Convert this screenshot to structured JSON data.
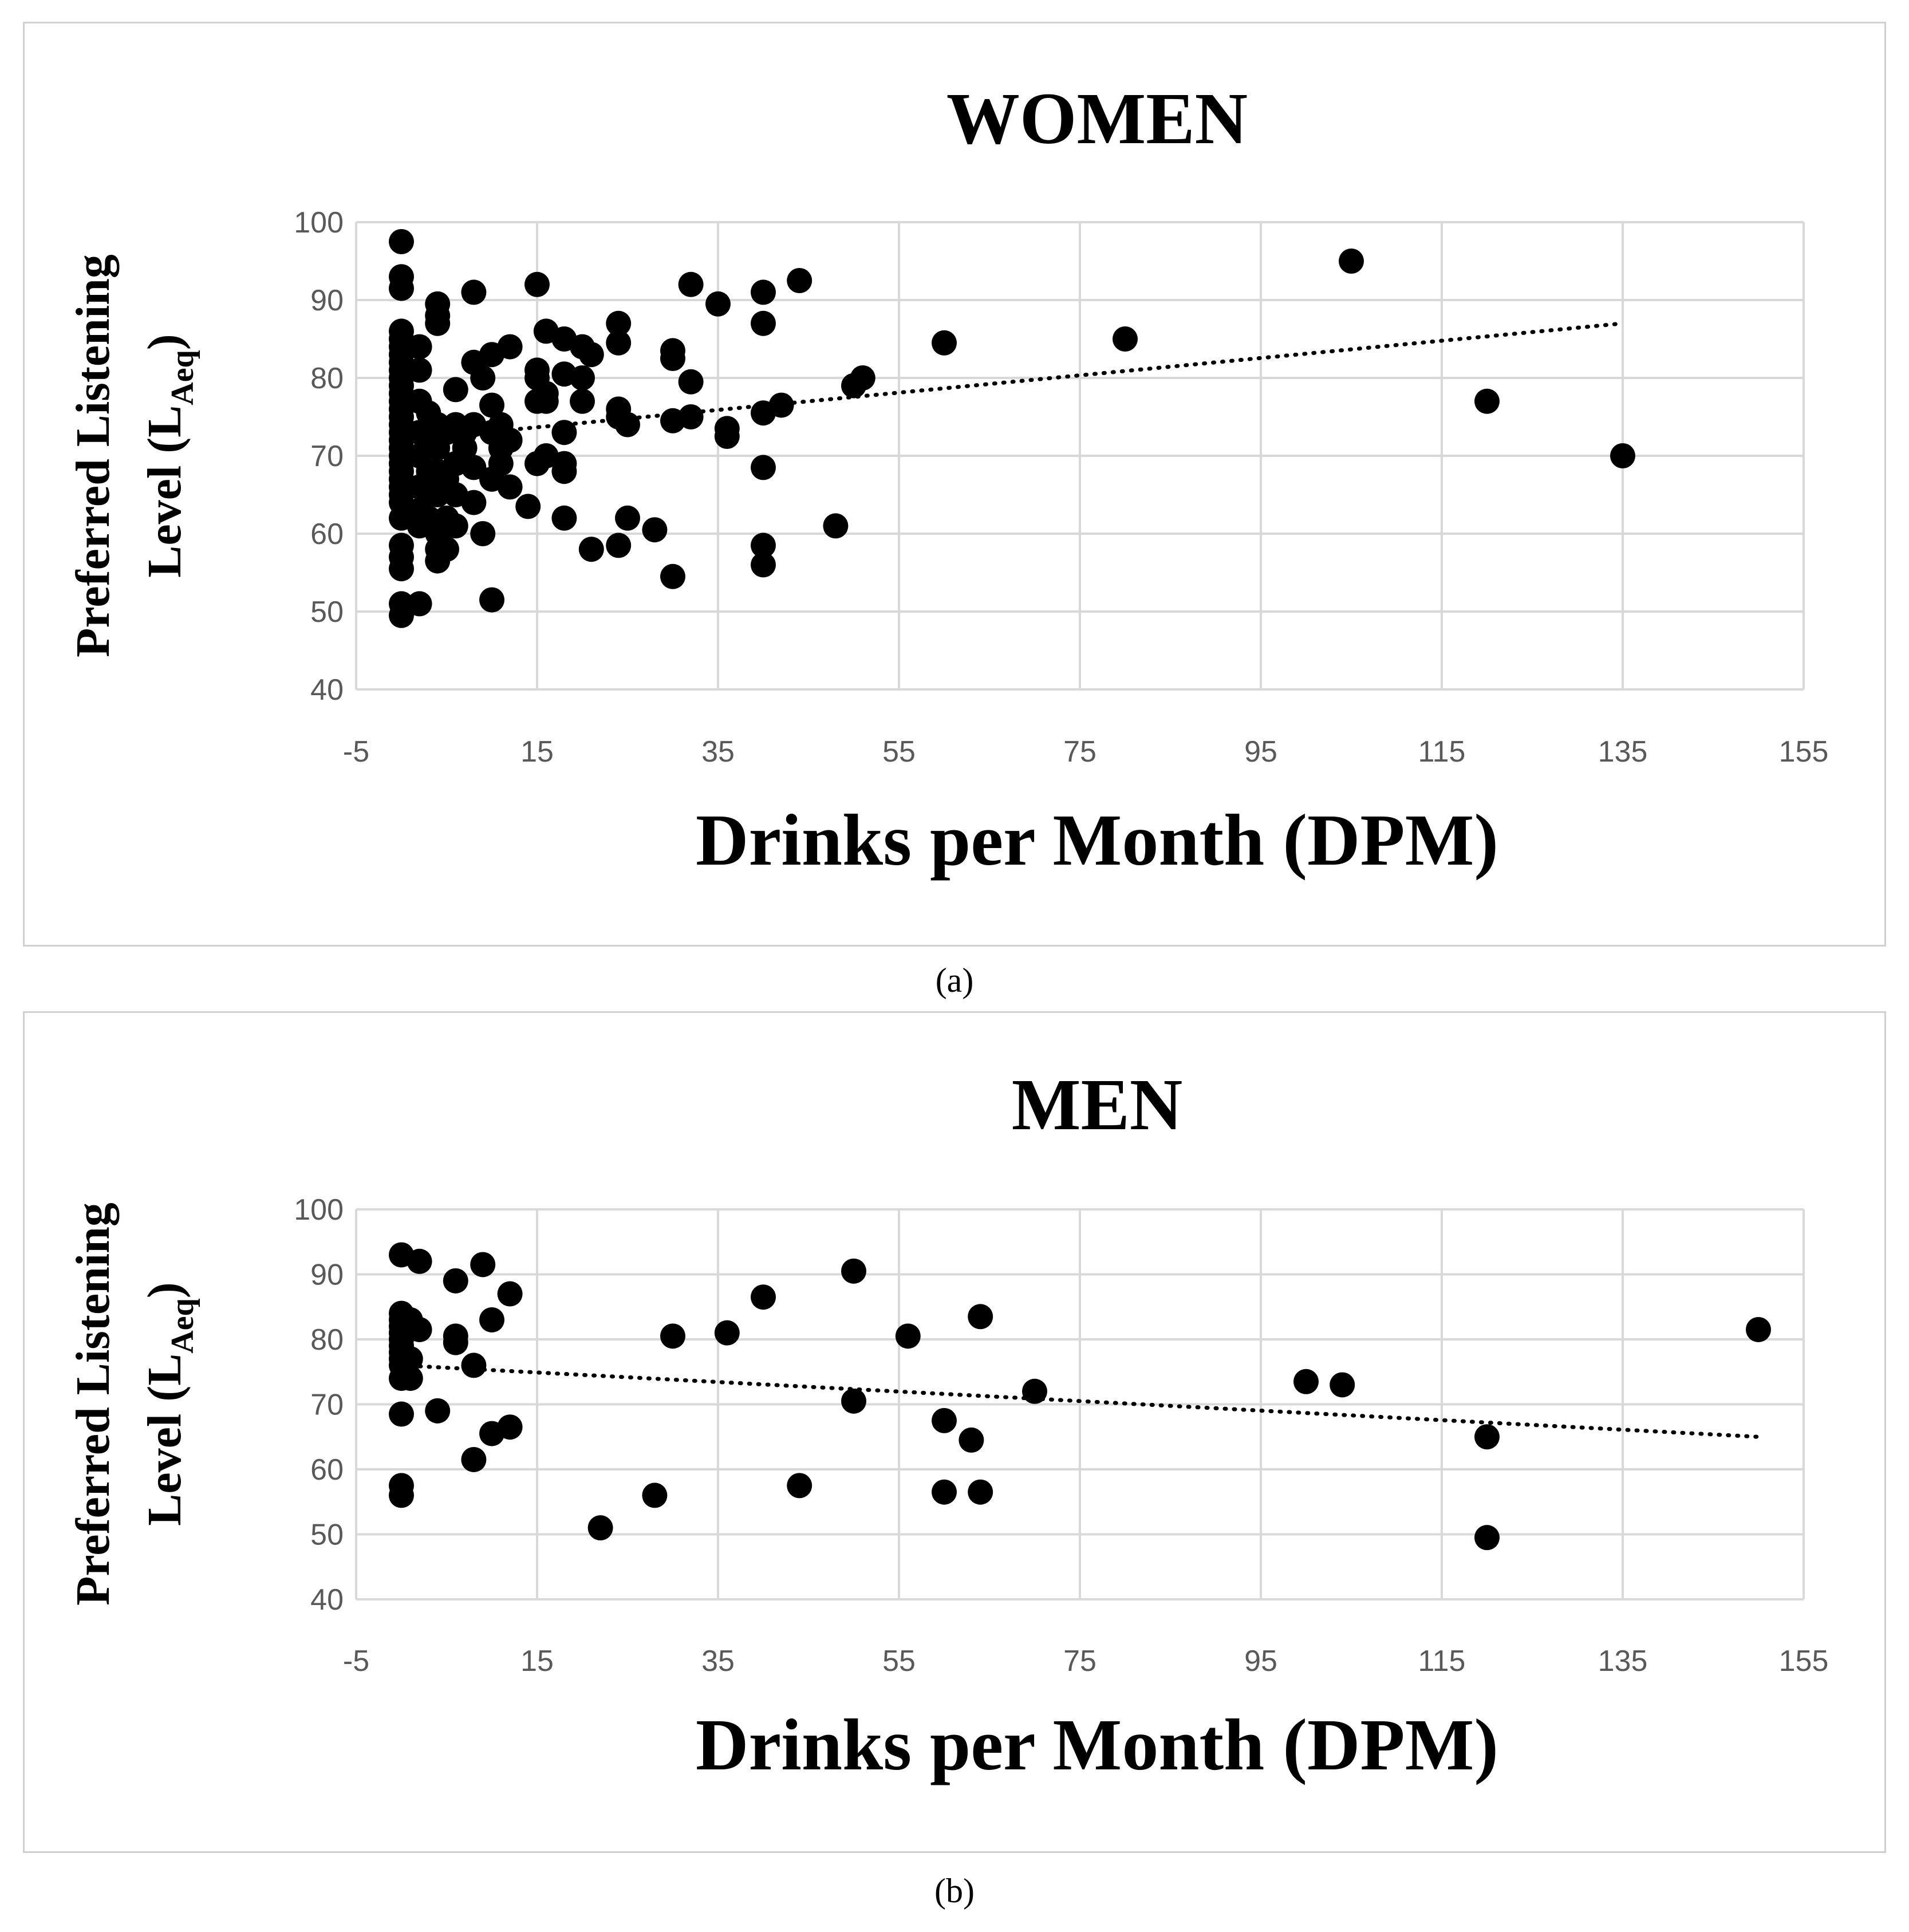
{
  "captions": {
    "a": "(a)",
    "b": "(b)"
  },
  "colors": {
    "marker": "#000000",
    "grid": "#d9d9d9",
    "tick_text": "#595959",
    "border": "#d0d0d0"
  },
  "chart_data": [
    {
      "type": "scatter",
      "title": "WOMEN",
      "xlabel": "Drinks per Month (DPM)",
      "ylabel_line1": "Preferred Listening",
      "ylabel_line2": "Level (L",
      "ylabel_sub": "Aeq",
      "ylabel_close": ")",
      "xlim": [
        -5,
        155
      ],
      "ylim": [
        40,
        100
      ],
      "xticks": [
        -5,
        15,
        35,
        55,
        75,
        95,
        115,
        135,
        155
      ],
      "yticks": [
        40,
        50,
        60,
        70,
        80,
        90,
        100
      ],
      "trendline": {
        "style": "dotted",
        "x": [
          0,
          135
        ],
        "y": [
          72.0,
          87.0
        ]
      },
      "points": [
        [
          0,
          97.5
        ],
        [
          0,
          93
        ],
        [
          0,
          91.5
        ],
        [
          0,
          86
        ],
        [
          0,
          85
        ],
        [
          0,
          84
        ],
        [
          0,
          83
        ],
        [
          0,
          82
        ],
        [
          0,
          81
        ],
        [
          0,
          80
        ],
        [
          0,
          79
        ],
        [
          0,
          78
        ],
        [
          0,
          77
        ],
        [
          0,
          76
        ],
        [
          0,
          75
        ],
        [
          0,
          74
        ],
        [
          0,
          73
        ],
        [
          0,
          72
        ],
        [
          0,
          71
        ],
        [
          0,
          70
        ],
        [
          0,
          69
        ],
        [
          0,
          68
        ],
        [
          0,
          67
        ],
        [
          0,
          66
        ],
        [
          0,
          65
        ],
        [
          0,
          64
        ],
        [
          0,
          62
        ],
        [
          0,
          58.5
        ],
        [
          0,
          57
        ],
        [
          0,
          55.5
        ],
        [
          0,
          51
        ],
        [
          0,
          49.5
        ],
        [
          2,
          84
        ],
        [
          2,
          81
        ],
        [
          2,
          77
        ],
        [
          2,
          73
        ],
        [
          2,
          70
        ],
        [
          2,
          66
        ],
        [
          2,
          63
        ],
        [
          2,
          61
        ],
        [
          2,
          51
        ],
        [
          3,
          75.5
        ],
        [
          3,
          72
        ],
        [
          3,
          68
        ],
        [
          3,
          65
        ],
        [
          3,
          62
        ],
        [
          4,
          89.5
        ],
        [
          4,
          88
        ],
        [
          4,
          87
        ],
        [
          4,
          74
        ],
        [
          4,
          71
        ],
        [
          4,
          68
        ],
        [
          4,
          65
        ],
        [
          4,
          60
        ],
        [
          4,
          58
        ],
        [
          4,
          56.5
        ],
        [
          5,
          73
        ],
        [
          5,
          67
        ],
        [
          5,
          62
        ],
        [
          5,
          58
        ],
        [
          6,
          78.5
        ],
        [
          6,
          74
        ],
        [
          6,
          69
        ],
        [
          6,
          65
        ],
        [
          6,
          61
        ],
        [
          7,
          73
        ],
        [
          7,
          71
        ],
        [
          8,
          91
        ],
        [
          8,
          82
        ],
        [
          8,
          74
        ],
        [
          8,
          68.5
        ],
        [
          8,
          64
        ],
        [
          9,
          80
        ],
        [
          9,
          60
        ],
        [
          10,
          83
        ],
        [
          10,
          76.5
        ],
        [
          10,
          73
        ],
        [
          10,
          67
        ],
        [
          10,
          51.5
        ],
        [
          11,
          74
        ],
        [
          11,
          71
        ],
        [
          11,
          69
        ],
        [
          12,
          84
        ],
        [
          12,
          72
        ],
        [
          12,
          66
        ],
        [
          14,
          63.5
        ],
        [
          15,
          92
        ],
        [
          15,
          81
        ],
        [
          15,
          80
        ],
        [
          15,
          77
        ],
        [
          15,
          69
        ],
        [
          16,
          86
        ],
        [
          16,
          78
        ],
        [
          16,
          77
        ],
        [
          16,
          70
        ],
        [
          18,
          85
        ],
        [
          18,
          80.5
        ],
        [
          18,
          73
        ],
        [
          18,
          69
        ],
        [
          18,
          68
        ],
        [
          18,
          62
        ],
        [
          20,
          84
        ],
        [
          20,
          80
        ],
        [
          20,
          77
        ],
        [
          21,
          83
        ],
        [
          21,
          58
        ],
        [
          24,
          87
        ],
        [
          24,
          84.5
        ],
        [
          24,
          76
        ],
        [
          24,
          75
        ],
        [
          24,
          58.5
        ],
        [
          25,
          74
        ],
        [
          25,
          62
        ],
        [
          28,
          60.5
        ],
        [
          30,
          83.5
        ],
        [
          30,
          82.5
        ],
        [
          30,
          74.5
        ],
        [
          30,
          54.5
        ],
        [
          32,
          92
        ],
        [
          32,
          79.5
        ],
        [
          32,
          75
        ],
        [
          35,
          89.5
        ],
        [
          36,
          73.5
        ],
        [
          36,
          72.5
        ],
        [
          40,
          91
        ],
        [
          40,
          87
        ],
        [
          40,
          75.5
        ],
        [
          40,
          68.5
        ],
        [
          40,
          58.5
        ],
        [
          40,
          56
        ],
        [
          42,
          76.5
        ],
        [
          44,
          92.5
        ],
        [
          48,
          61
        ],
        [
          50,
          79
        ],
        [
          51,
          80
        ],
        [
          60,
          84.5
        ],
        [
          80,
          85
        ],
        [
          105,
          95
        ],
        [
          120,
          77
        ],
        [
          135,
          70
        ]
      ]
    },
    {
      "type": "scatter",
      "title": "MEN",
      "xlabel": "Drinks per Month (DPM)",
      "ylabel_line1": "Preferred Listening",
      "ylabel_line2": "Level (L",
      "ylabel_sub": "Aeq",
      "ylabel_close": ")",
      "xlim": [
        -5,
        155
      ],
      "ylim": [
        40,
        100
      ],
      "xticks": [
        -5,
        15,
        35,
        55,
        75,
        95,
        115,
        135,
        155
      ],
      "yticks": [
        40,
        50,
        60,
        70,
        80,
        90,
        100
      ],
      "trendline": {
        "style": "dotted",
        "x": [
          0,
          150
        ],
        "y": [
          76.0,
          65.0
        ]
      },
      "points": [
        [
          0,
          93
        ],
        [
          0,
          84
        ],
        [
          0,
          83
        ],
        [
          0,
          82
        ],
        [
          0,
          81
        ],
        [
          0,
          80
        ],
        [
          0,
          79
        ],
        [
          0,
          78
        ],
        [
          0,
          77
        ],
        [
          0,
          76
        ],
        [
          0,
          74
        ],
        [
          0,
          68.5
        ],
        [
          0,
          57.5
        ],
        [
          0,
          56
        ],
        [
          1,
          83
        ],
        [
          1,
          77
        ],
        [
          1,
          74
        ],
        [
          2,
          92
        ],
        [
          2,
          81.5
        ],
        [
          4,
          69
        ],
        [
          6,
          89
        ],
        [
          6,
          80.5
        ],
        [
          6,
          79.5
        ],
        [
          8,
          76
        ],
        [
          8,
          61.5
        ],
        [
          9,
          91.5
        ],
        [
          10,
          83
        ],
        [
          10,
          65.5
        ],
        [
          12,
          87
        ],
        [
          12,
          66.5
        ],
        [
          22,
          51
        ],
        [
          28,
          56
        ],
        [
          30,
          80.5
        ],
        [
          36,
          81
        ],
        [
          40,
          86.5
        ],
        [
          44,
          57.5
        ],
        [
          50,
          90.5
        ],
        [
          50,
          70.5
        ],
        [
          56,
          80.5
        ],
        [
          60,
          67.5
        ],
        [
          60,
          56.5
        ],
        [
          63,
          64.5
        ],
        [
          64,
          83.5
        ],
        [
          64,
          56.5
        ],
        [
          70,
          72
        ],
        [
          100,
          73.5
        ],
        [
          104,
          73
        ],
        [
          120,
          65
        ],
        [
          120,
          49.5
        ],
        [
          150,
          81.5
        ]
      ]
    }
  ]
}
